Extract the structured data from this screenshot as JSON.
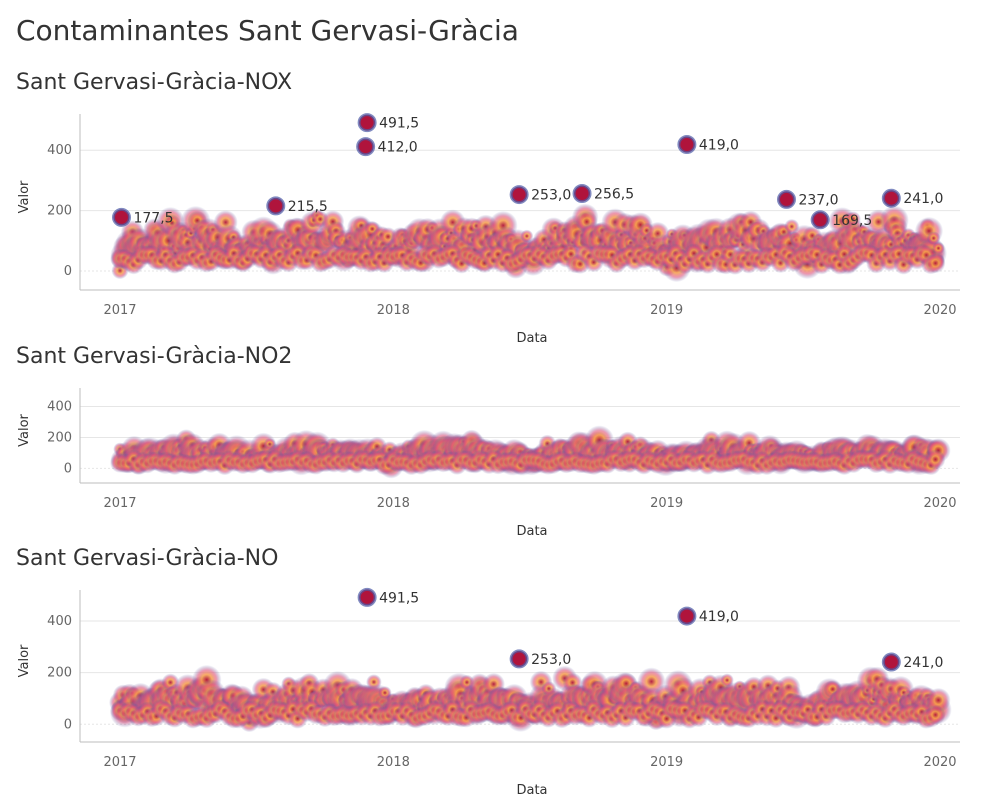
{
  "dashboard_title": "Contaminantes Sant Gervasi-Gràcia",
  "chart_data": [
    {
      "type": "heatmap",
      "title": "Sant Gervasi-Gràcia-NOX",
      "xlabel": "Data",
      "ylabel": "Valor",
      "x_ticks": [
        "2017",
        "2018",
        "2019",
        "2020"
      ],
      "y_ticks": [
        0,
        200,
        400
      ],
      "ylim": [
        -30,
        520
      ],
      "x_range": [
        "2017-01-01",
        "2020-01-01"
      ],
      "grid": true,
      "labels": [
        {
          "date": "2017-01-03",
          "value": 177.5,
          "text": "177,5"
        },
        {
          "date": "2017-07-28",
          "value": 215.5,
          "text": "215,5"
        },
        {
          "date": "2017-11-27",
          "value": 491.5,
          "text": "491,5"
        },
        {
          "date": "2017-11-25",
          "value": 412.0,
          "text": "412,0"
        },
        {
          "date": "2018-06-18",
          "value": 253.0,
          "text": "253,0"
        },
        {
          "date": "2018-09-10",
          "value": 256.5,
          "text": "256,5"
        },
        {
          "date": "2019-01-28",
          "value": 419.0,
          "text": "419,0"
        },
        {
          "date": "2019-06-10",
          "value": 237.0,
          "text": "237,0"
        },
        {
          "date": "2019-07-25",
          "value": 169.5,
          "text": "169,5"
        },
        {
          "date": "2019-10-28",
          "value": 241.0,
          "text": "241,0"
        }
      ]
    },
    {
      "type": "heatmap",
      "title": "Sant Gervasi-Gràcia-NO2",
      "xlabel": "Data",
      "ylabel": "Valor",
      "x_ticks": [
        "2017",
        "2018",
        "2019",
        "2020"
      ],
      "y_ticks": [
        0,
        200,
        400
      ],
      "ylim": [
        -30,
        520
      ],
      "x_range": [
        "2017-01-01",
        "2020-01-01"
      ],
      "grid": true,
      "labels": []
    },
    {
      "type": "heatmap",
      "title": "Sant Gervasi-Gràcia-NO",
      "xlabel": "Data",
      "ylabel": "Valor",
      "x_ticks": [
        "2017",
        "2018",
        "2019",
        "2020"
      ],
      "y_ticks": [
        0,
        200,
        400
      ],
      "ylim": [
        -30,
        520
      ],
      "x_range": [
        "2017-01-01",
        "2020-01-01"
      ],
      "grid": true,
      "labels": [
        {
          "date": "2017-11-27",
          "value": 491.5,
          "text": "491,5"
        },
        {
          "date": "2018-06-18",
          "value": 253.0,
          "text": "253,0"
        },
        {
          "date": "2019-01-28",
          "value": 419.0,
          "text": "419,0"
        },
        {
          "date": "2019-10-28",
          "value": 241.0,
          "text": "241,0"
        }
      ]
    }
  ],
  "colors": {
    "density_low": "#4b5aa6",
    "density_mid": "#e0507a",
    "density_high": "#f5a04a",
    "density_peak": "#b0143c",
    "grid": "#e6e6e6",
    "axis": "#bdbdbd"
  }
}
